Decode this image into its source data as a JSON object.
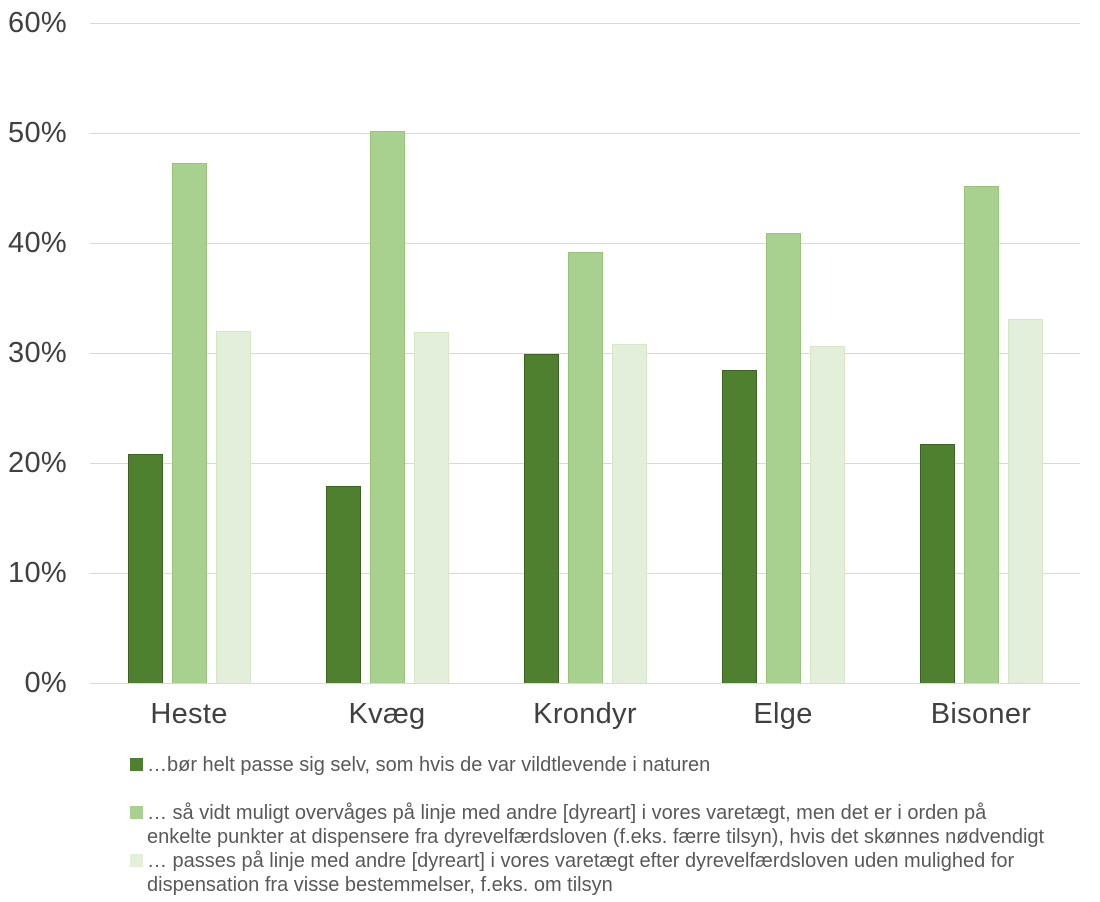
{
  "chart_data": {
    "type": "bar",
    "title": "",
    "xlabel": "",
    "ylabel": "",
    "categories": [
      "Heste",
      "Kvæg",
      "Krondyr",
      "Elge",
      "Bisoner"
    ],
    "series": [
      {
        "name": "…bør helt passe sig selv, som hvis de var vildtlevende i naturen",
        "color": "#4E8030",
        "border_color": "#3D6323",
        "values": [
          20.8,
          17.9,
          29.9,
          28.5,
          21.7
        ]
      },
      {
        "name": "… så vidt muligt overvåges på linje med andre [dyreart] i vores varetægt, men det er i orden på enkelte punkter at dispensere fra dyrevelfærdsloven (f.eks. færre tilsyn), hvis det skønnes nødvendigt",
        "color": "#A8D08E",
        "border_color": "#9BC279",
        "values": [
          47.3,
          50.2,
          39.2,
          40.9,
          45.2
        ]
      },
      {
        "name": "… passes på linje med andre [dyreart] i vores varetægt efter dyrevelfærdsloven uden mulighed for dispensation fra visse bestemmelser, f.eks. om tilsyn",
        "color": "#E3EFDA",
        "border_color": "#D6E7C6",
        "values": [
          32.0,
          31.9,
          30.8,
          30.6,
          33.1
        ]
      }
    ],
    "legend_lines": [
      [
        "…bør helt passe sig selv, som hvis de var vildtlevende i naturen"
      ],
      [
        "… så vidt muligt overvåges på linje med andre [dyreart] i vores varetægt, men det er i orden på",
        "enkelte punkter at dispensere fra dyrevelfærdsloven (f.eks. færre tilsyn), hvis det skønnes nødvendigt"
      ],
      [
        "… passes på linje med andre [dyreart] i vores varetægt efter dyrevelfærdsloven uden mulighed for",
        "dispensation fra visse bestemmelser, f.eks. om tilsyn"
      ]
    ],
    "ylim": [
      0,
      60
    ],
    "ytick_step": 10,
    "yticks": [
      "0%",
      "10%",
      "20%",
      "30%",
      "40%",
      "50%",
      "60%"
    ],
    "grid": true,
    "legend_position": "bottom-left",
    "colors": {
      "gridline": "#D9D9D9",
      "axis_text": "#404040",
      "legend_text": "#595959",
      "background": "#FFFFFF"
    }
  }
}
